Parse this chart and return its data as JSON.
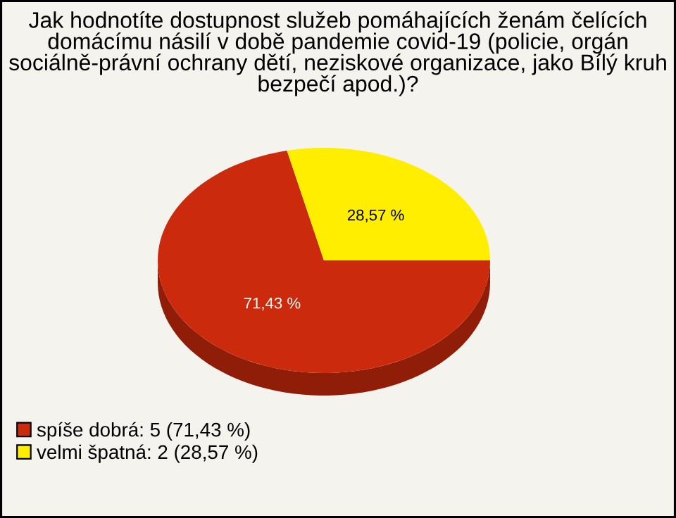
{
  "chart_data": {
    "type": "pie",
    "title": "Jak hodnotíte dostupnost služeb pomáhajících ženám čelících domácímu násilí v době pandemie covid-19 (policie, orgán sociálně-právní ochrany dětí, neziskové organizace, jako Bílý kruh bezpečí apod.)?",
    "categories": [
      "spíše dobrá: 5 (71,43 %)",
      "velmi špatná: 2 (28,57 %)"
    ],
    "values": [
      71.43,
      28.57
    ],
    "value_labels": [
      "71,43 %",
      "28,57 %"
    ],
    "colors": [
      "#cc2a0c",
      "#ffee00"
    ],
    "legend": "bottom left"
  }
}
